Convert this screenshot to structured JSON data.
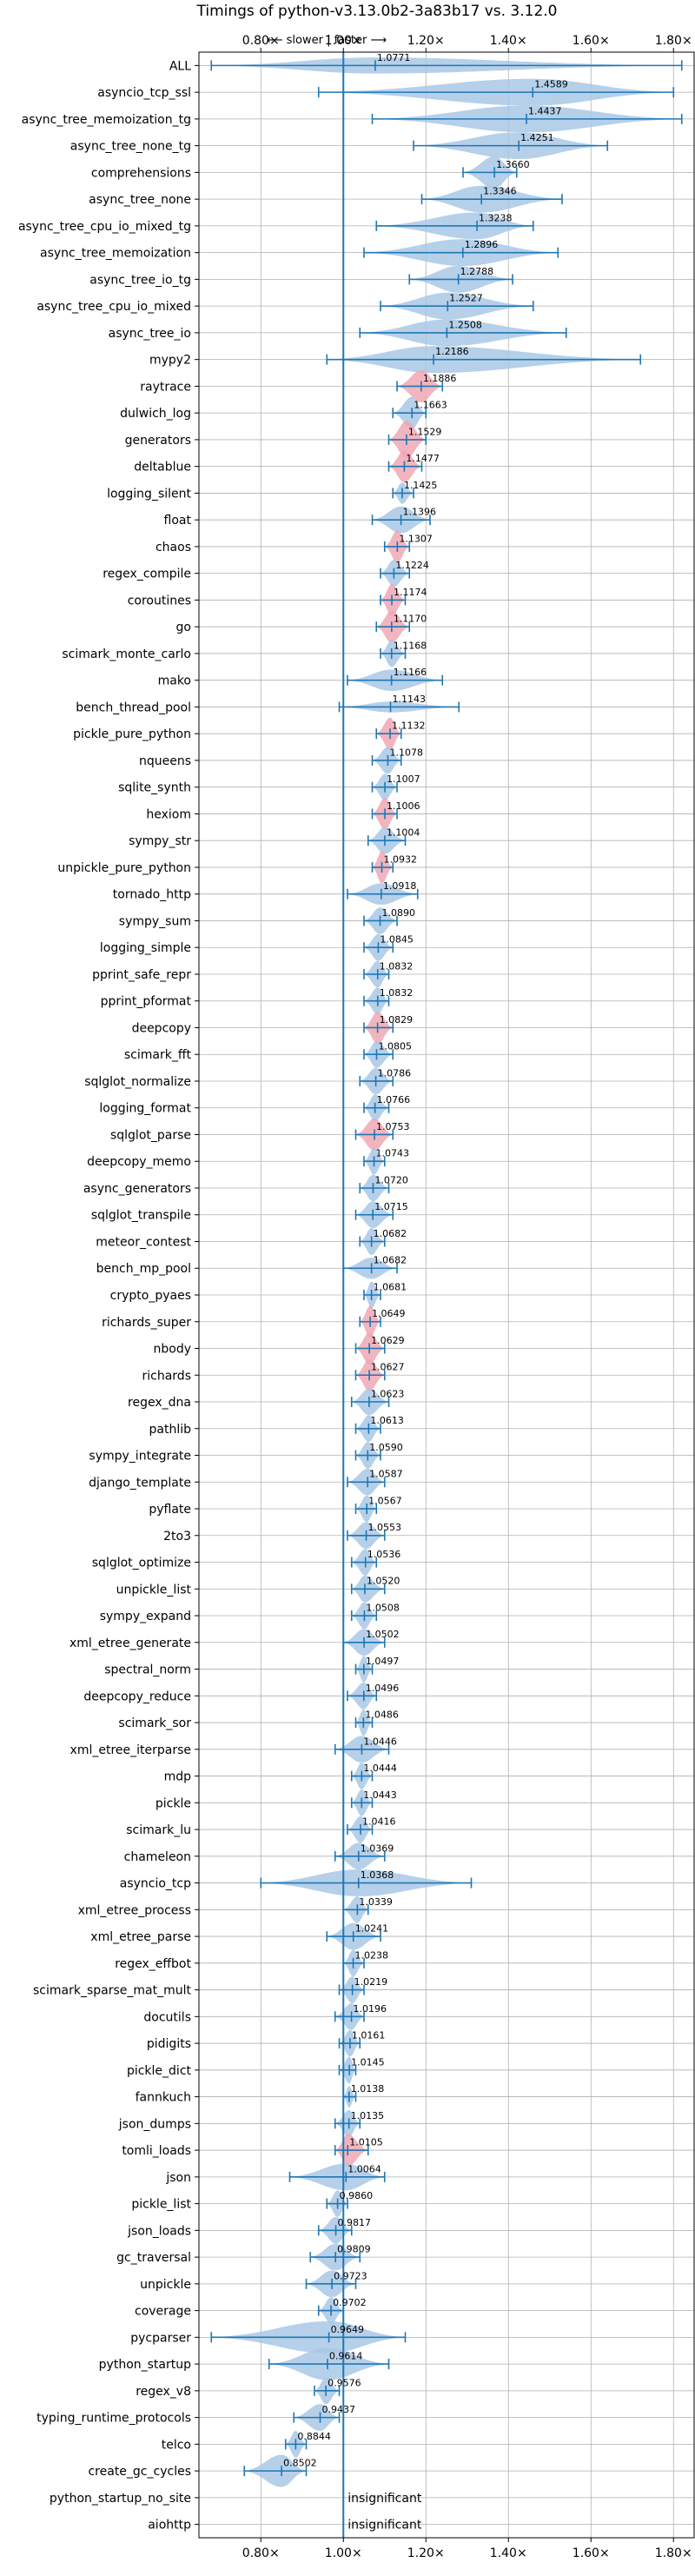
{
  "chart_data": {
    "type": "violin",
    "title": "Timings of python-v3.13.0b2-3a83b17 vs. 3.12.0",
    "direction_note": "⟵ slower | faster ⟶",
    "xlim": [
      0.65,
      1.85
    ],
    "xticks": [
      0.8,
      1.0,
      1.2,
      1.4,
      1.6,
      1.8
    ],
    "xtick_labels": [
      "0.80×",
      "1.00×",
      "1.20×",
      "1.40×",
      "1.60×",
      "1.80×"
    ],
    "reference_line": 1.0,
    "grid": true,
    "colors": {
      "violin": "#a9c8e6",
      "highlight": "#f0a8b4",
      "line": "#1f77b4",
      "grid": "#b0b0b0"
    },
    "benchmarks": [
      {
        "name": "ALL",
        "value": 1.0771,
        "label": "1.0771",
        "min": 0.68,
        "max": 1.82,
        "hw": 0.3,
        "ext": true,
        "hl": false
      },
      {
        "name": "asyncio_tcp_ssl",
        "value": 1.4589,
        "label": "1.4589",
        "min": 0.94,
        "max": 1.8,
        "hw": 0.5,
        "ext": true,
        "hl": false
      },
      {
        "name": "async_tree_memoization_tg",
        "value": 1.4437,
        "label": "1.4437",
        "min": 1.07,
        "max": 1.82,
        "hw": 0.5,
        "ext": true,
        "hl": false
      },
      {
        "name": "async_tree_none_tg",
        "value": 1.4251,
        "label": "1.4251",
        "min": 1.17,
        "max": 1.64,
        "hw": 0.5,
        "ext": true,
        "hl": false
      },
      {
        "name": "comprehensions",
        "value": 1.366,
        "label": "1.3660",
        "min": 1.29,
        "max": 1.42,
        "hw": 0.6,
        "ext": true,
        "hl": false
      },
      {
        "name": "async_tree_none",
        "value": 1.3346,
        "label": "1.3346",
        "min": 1.19,
        "max": 1.53,
        "hw": 0.5,
        "ext": true,
        "hl": false
      },
      {
        "name": "async_tree_cpu_io_mixed_tg",
        "value": 1.3238,
        "label": "1.3238",
        "min": 1.08,
        "max": 1.46,
        "hw": 0.5,
        "ext": true,
        "hl": false
      },
      {
        "name": "async_tree_memoization",
        "value": 1.2896,
        "label": "1.2896",
        "min": 1.05,
        "max": 1.52,
        "hw": 0.5,
        "ext": true,
        "hl": false
      },
      {
        "name": "async_tree_io_tg",
        "value": 1.2788,
        "label": "1.2788",
        "min": 1.16,
        "max": 1.41,
        "hw": 0.5,
        "ext": true,
        "hl": false
      },
      {
        "name": "async_tree_cpu_io_mixed",
        "value": 1.2527,
        "label": "1.2527",
        "min": 1.09,
        "max": 1.46,
        "hw": 0.5,
        "ext": true,
        "hl": false
      },
      {
        "name": "async_tree_io",
        "value": 1.2508,
        "label": "1.2508",
        "min": 1.04,
        "max": 1.54,
        "hw": 0.5,
        "ext": true,
        "hl": false
      },
      {
        "name": "mypy2",
        "value": 1.2186,
        "label": "1.2186",
        "min": 0.96,
        "max": 1.72,
        "hw": 0.5,
        "ext": true,
        "hl": false
      },
      {
        "name": "raytrace",
        "value": 1.1886,
        "label": "1.1886",
        "min": 1.13,
        "max": 1.24,
        "hw": 0.6,
        "ext": true,
        "hl": true
      },
      {
        "name": "dulwich_log",
        "value": 1.1663,
        "label": "1.1663",
        "min": 1.12,
        "max": 1.2,
        "hw": 0.6,
        "ext": true,
        "hl": false
      },
      {
        "name": "generators",
        "value": 1.1529,
        "label": "1.1529",
        "min": 1.11,
        "max": 1.2,
        "hw": 0.7,
        "ext": true,
        "hl": true
      },
      {
        "name": "deltablue",
        "value": 1.1477,
        "label": "1.1477",
        "min": 1.11,
        "max": 1.19,
        "hw": 0.6,
        "ext": true,
        "hl": true
      },
      {
        "name": "logging_silent",
        "value": 1.1425,
        "label": "1.1425",
        "min": 1.12,
        "max": 1.17,
        "hw": 0.4,
        "ext": true,
        "hl": false
      },
      {
        "name": "float",
        "value": 1.1396,
        "label": "1.1396",
        "min": 1.07,
        "max": 1.21,
        "hw": 0.5,
        "ext": true,
        "hl": false
      },
      {
        "name": "chaos",
        "value": 1.1307,
        "label": "1.1307",
        "min": 1.1,
        "max": 1.16,
        "hw": 0.6,
        "ext": true,
        "hl": true
      },
      {
        "name": "regex_compile",
        "value": 1.1224,
        "label": "1.1224",
        "min": 1.09,
        "max": 1.16,
        "hw": 0.5,
        "ext": true,
        "hl": false
      },
      {
        "name": "coroutines",
        "value": 1.1174,
        "label": "1.1174",
        "min": 1.09,
        "max": 1.15,
        "hw": 0.6,
        "ext": true,
        "hl": true
      },
      {
        "name": "go",
        "value": 1.117,
        "label": "1.1170",
        "min": 1.08,
        "max": 1.16,
        "hw": 0.6,
        "ext": true,
        "hl": true
      },
      {
        "name": "scimark_monte_carlo",
        "value": 1.1168,
        "label": "1.1168",
        "min": 1.09,
        "max": 1.15,
        "hw": 0.5,
        "ext": true,
        "hl": false
      },
      {
        "name": "mako",
        "value": 1.1166,
        "label": "1.1166",
        "min": 1.01,
        "max": 1.24,
        "hw": 0.4,
        "ext": true,
        "hl": false
      },
      {
        "name": "bench_thread_pool",
        "value": 1.1143,
        "label": "1.1143",
        "min": 0.99,
        "max": 1.28,
        "hw": 0.2,
        "ext": true,
        "hl": false
      },
      {
        "name": "pickle_pure_python",
        "value": 1.1132,
        "label": "1.1132",
        "min": 1.08,
        "max": 1.14,
        "hw": 0.6,
        "ext": true,
        "hl": true
      },
      {
        "name": "nqueens",
        "value": 1.1078,
        "label": "1.1078",
        "min": 1.07,
        "max": 1.14,
        "hw": 0.5,
        "ext": true,
        "hl": false
      },
      {
        "name": "sqlite_synth",
        "value": 1.1007,
        "label": "1.1007",
        "min": 1.07,
        "max": 1.13,
        "hw": 0.5,
        "ext": true,
        "hl": false
      },
      {
        "name": "hexiom",
        "value": 1.1006,
        "label": "1.1006",
        "min": 1.07,
        "max": 1.13,
        "hw": 0.6,
        "ext": true,
        "hl": true
      },
      {
        "name": "sympy_str",
        "value": 1.1004,
        "label": "1.1004",
        "min": 1.06,
        "max": 1.15,
        "hw": 0.5,
        "ext": true,
        "hl": false
      },
      {
        "name": "unpickle_pure_python",
        "value": 1.0932,
        "label": "1.0932",
        "min": 1.07,
        "max": 1.12,
        "hw": 0.6,
        "ext": true,
        "hl": true
      },
      {
        "name": "tornado_http",
        "value": 1.0918,
        "label": "1.0918",
        "min": 1.01,
        "max": 1.18,
        "hw": 0.4,
        "ext": true,
        "hl": false
      },
      {
        "name": "sympy_sum",
        "value": 1.089,
        "label": "1.0890",
        "min": 1.05,
        "max": 1.13,
        "hw": 0.5,
        "ext": true,
        "hl": false
      },
      {
        "name": "logging_simple",
        "value": 1.0845,
        "label": "1.0845",
        "min": 1.05,
        "max": 1.12,
        "hw": 0.5,
        "ext": true,
        "hl": false
      },
      {
        "name": "pprint_safe_repr",
        "value": 1.0832,
        "label": "1.0832",
        "min": 1.05,
        "max": 1.11,
        "hw": 0.5,
        "ext": true,
        "hl": false
      },
      {
        "name": "pprint_pformat",
        "value": 1.0832,
        "label": "1.0832",
        "min": 1.05,
        "max": 1.11,
        "hw": 0.5,
        "ext": true,
        "hl": false
      },
      {
        "name": "deepcopy",
        "value": 1.0829,
        "label": "1.0829",
        "min": 1.05,
        "max": 1.12,
        "hw": 0.6,
        "ext": true,
        "hl": true
      },
      {
        "name": "scimark_fft",
        "value": 1.0805,
        "label": "1.0805",
        "min": 1.05,
        "max": 1.12,
        "hw": 0.5,
        "ext": true,
        "hl": false
      },
      {
        "name": "sqlglot_normalize",
        "value": 1.0786,
        "label": "1.0786",
        "min": 1.04,
        "max": 1.12,
        "hw": 0.5,
        "ext": true,
        "hl": false
      },
      {
        "name": "logging_format",
        "value": 1.0766,
        "label": "1.0766",
        "min": 1.05,
        "max": 1.11,
        "hw": 0.5,
        "ext": true,
        "hl": false
      },
      {
        "name": "sqlglot_parse",
        "value": 1.0753,
        "label": "1.0753",
        "min": 1.03,
        "max": 1.12,
        "hw": 0.6,
        "ext": true,
        "hl": true
      },
      {
        "name": "deepcopy_memo",
        "value": 1.0743,
        "label": "1.0743",
        "min": 1.05,
        "max": 1.1,
        "hw": 0.5,
        "ext": true,
        "hl": false
      },
      {
        "name": "async_generators",
        "value": 1.072,
        "label": "1.0720",
        "min": 1.04,
        "max": 1.11,
        "hw": 0.5,
        "ext": true,
        "hl": false
      },
      {
        "name": "sqlglot_transpile",
        "value": 1.0715,
        "label": "1.0715",
        "min": 1.03,
        "max": 1.12,
        "hw": 0.5,
        "ext": true,
        "hl": false
      },
      {
        "name": "meteor_contest",
        "value": 1.0682,
        "label": "1.0682",
        "min": 1.04,
        "max": 1.1,
        "hw": 0.5,
        "ext": true,
        "hl": false
      },
      {
        "name": "bench_mp_pool",
        "value": 1.0682,
        "label": "1.0682",
        "min": 1.0,
        "max": 1.13,
        "hw": 0.4,
        "ext": true,
        "hl": false
      },
      {
        "name": "crypto_pyaes",
        "value": 1.0681,
        "label": "1.0681",
        "min": 1.05,
        "max": 1.09,
        "hw": 0.5,
        "ext": true,
        "hl": false
      },
      {
        "name": "richards_super",
        "value": 1.0649,
        "label": "1.0649",
        "min": 1.04,
        "max": 1.09,
        "hw": 0.6,
        "ext": true,
        "hl": true
      },
      {
        "name": "nbody",
        "value": 1.0629,
        "label": "1.0629",
        "min": 1.03,
        "max": 1.1,
        "hw": 0.6,
        "ext": true,
        "hl": true
      },
      {
        "name": "richards",
        "value": 1.0627,
        "label": "1.0627",
        "min": 1.03,
        "max": 1.1,
        "hw": 0.6,
        "ext": true,
        "hl": true
      },
      {
        "name": "regex_dna",
        "value": 1.0623,
        "label": "1.0623",
        "min": 1.02,
        "max": 1.11,
        "hw": 0.5,
        "ext": true,
        "hl": false
      },
      {
        "name": "pathlib",
        "value": 1.0613,
        "label": "1.0613",
        "min": 1.03,
        "max": 1.09,
        "hw": 0.5,
        "ext": true,
        "hl": false
      },
      {
        "name": "sympy_integrate",
        "value": 1.059,
        "label": "1.0590",
        "min": 1.03,
        "max": 1.09,
        "hw": 0.5,
        "ext": true,
        "hl": false
      },
      {
        "name": "django_template",
        "value": 1.0587,
        "label": "1.0587",
        "min": 1.01,
        "max": 1.1,
        "hw": 0.5,
        "ext": true,
        "hl": false
      },
      {
        "name": "pyflate",
        "value": 1.0567,
        "label": "1.0567",
        "min": 1.03,
        "max": 1.08,
        "hw": 0.5,
        "ext": true,
        "hl": false
      },
      {
        "name": "2to3",
        "value": 1.0553,
        "label": "1.0553",
        "min": 1.01,
        "max": 1.1,
        "hw": 0.5,
        "ext": true,
        "hl": false
      },
      {
        "name": "sqlglot_optimize",
        "value": 1.0536,
        "label": "1.0536",
        "min": 1.02,
        "max": 1.08,
        "hw": 0.5,
        "ext": true,
        "hl": false
      },
      {
        "name": "unpickle_list",
        "value": 1.052,
        "label": "1.0520",
        "min": 1.02,
        "max": 1.1,
        "hw": 0.5,
        "ext": true,
        "hl": false
      },
      {
        "name": "sympy_expand",
        "value": 1.0508,
        "label": "1.0508",
        "min": 1.02,
        "max": 1.08,
        "hw": 0.5,
        "ext": true,
        "hl": false
      },
      {
        "name": "xml_etree_generate",
        "value": 1.0502,
        "label": "1.0502",
        "min": 1.0,
        "max": 1.1,
        "hw": 0.5,
        "ext": true,
        "hl": false
      },
      {
        "name": "spectral_norm",
        "value": 1.0497,
        "label": "1.0497",
        "min": 1.03,
        "max": 1.07,
        "hw": 0.5,
        "ext": true,
        "hl": false
      },
      {
        "name": "deepcopy_reduce",
        "value": 1.0496,
        "label": "1.0496",
        "min": 1.01,
        "max": 1.08,
        "hw": 0.5,
        "ext": true,
        "hl": false
      },
      {
        "name": "scimark_sor",
        "value": 1.0486,
        "label": "1.0486",
        "min": 1.03,
        "max": 1.07,
        "hw": 0.5,
        "ext": true,
        "hl": false
      },
      {
        "name": "xml_etree_iterparse",
        "value": 1.0446,
        "label": "1.0446",
        "min": 0.98,
        "max": 1.11,
        "hw": 0.5,
        "ext": true,
        "hl": false
      },
      {
        "name": "mdp",
        "value": 1.0444,
        "label": "1.0444",
        "min": 1.02,
        "max": 1.07,
        "hw": 0.5,
        "ext": true,
        "hl": false
      },
      {
        "name": "pickle",
        "value": 1.0443,
        "label": "1.0443",
        "min": 1.02,
        "max": 1.07,
        "hw": 0.5,
        "ext": true,
        "hl": false
      },
      {
        "name": "scimark_lu",
        "value": 1.0416,
        "label": "1.0416",
        "min": 1.01,
        "max": 1.07,
        "hw": 0.5,
        "ext": true,
        "hl": false
      },
      {
        "name": "chameleon",
        "value": 1.0369,
        "label": "1.0369",
        "min": 0.98,
        "max": 1.1,
        "hw": 0.5,
        "ext": true,
        "hl": false
      },
      {
        "name": "asyncio_tcp",
        "value": 1.0368,
        "label": "1.0368",
        "min": 0.8,
        "max": 1.31,
        "hw": 0.5,
        "ext": true,
        "hl": false
      },
      {
        "name": "xml_etree_process",
        "value": 1.0339,
        "label": "1.0339",
        "min": 1.0,
        "max": 1.06,
        "hw": 0.5,
        "ext": true,
        "hl": false
      },
      {
        "name": "xml_etree_parse",
        "value": 1.0241,
        "label": "1.0241",
        "min": 0.96,
        "max": 1.09,
        "hw": 0.5,
        "ext": true,
        "hl": false
      },
      {
        "name": "regex_effbot",
        "value": 1.0238,
        "label": "1.0238",
        "min": 1.0,
        "max": 1.05,
        "hw": 0.5,
        "ext": true,
        "hl": false
      },
      {
        "name": "scimark_sparse_mat_mult",
        "value": 1.0219,
        "label": "1.0219",
        "min": 0.99,
        "max": 1.05,
        "hw": 0.5,
        "ext": true,
        "hl": false
      },
      {
        "name": "docutils",
        "value": 1.0196,
        "label": "1.0196",
        "min": 0.98,
        "max": 1.05,
        "hw": 0.5,
        "ext": true,
        "hl": false
      },
      {
        "name": "pidigits",
        "value": 1.0161,
        "label": "1.0161",
        "min": 0.99,
        "max": 1.04,
        "hw": 0.5,
        "ext": true,
        "hl": false
      },
      {
        "name": "pickle_dict",
        "value": 1.0145,
        "label": "1.0145",
        "min": 0.99,
        "max": 1.03,
        "hw": 0.5,
        "ext": true,
        "hl": false
      },
      {
        "name": "fannkuch",
        "value": 1.0138,
        "label": "1.0138",
        "min": 1.0,
        "max": 1.03,
        "hw": 0.4,
        "ext": true,
        "hl": false
      },
      {
        "name": "json_dumps",
        "value": 1.0135,
        "label": "1.0135",
        "min": 0.98,
        "max": 1.04,
        "hw": 0.5,
        "ext": true,
        "hl": false
      },
      {
        "name": "tomli_loads",
        "value": 1.0105,
        "label": "1.0105",
        "min": 0.98,
        "max": 1.06,
        "hw": 0.6,
        "ext": true,
        "hl": true
      },
      {
        "name": "json",
        "value": 1.0064,
        "label": "1.0064",
        "min": 0.87,
        "max": 1.1,
        "hw": 0.5,
        "ext": true,
        "hl": false
      },
      {
        "name": "pickle_list",
        "value": 0.986,
        "label": "0.9860",
        "min": 0.96,
        "max": 1.01,
        "hw": 0.5,
        "ext": true,
        "hl": false
      },
      {
        "name": "json_loads",
        "value": 0.9817,
        "label": "0.9817",
        "min": 0.94,
        "max": 1.02,
        "hw": 0.5,
        "ext": true,
        "hl": false
      },
      {
        "name": "gc_traversal",
        "value": 0.9809,
        "label": "0.9809",
        "min": 0.92,
        "max": 1.04,
        "hw": 0.5,
        "ext": true,
        "hl": false
      },
      {
        "name": "unpickle",
        "value": 0.9723,
        "label": "0.9723",
        "min": 0.91,
        "max": 1.03,
        "hw": 0.5,
        "ext": true,
        "hl": false
      },
      {
        "name": "coverage",
        "value": 0.9702,
        "label": "0.9702",
        "min": 0.94,
        "max": 1.0,
        "hw": 0.5,
        "ext": true,
        "hl": false
      },
      {
        "name": "pycparser",
        "value": 0.9649,
        "label": "0.9649",
        "min": 0.68,
        "max": 1.15,
        "hw": 0.6,
        "ext": true,
        "hl": false
      },
      {
        "name": "python_startup",
        "value": 0.9614,
        "label": "0.9614",
        "min": 0.82,
        "max": 1.11,
        "hw": 0.6,
        "ext": true,
        "hl": false
      },
      {
        "name": "regex_v8",
        "value": 0.9576,
        "label": "0.9576",
        "min": 0.93,
        "max": 0.99,
        "hw": 0.5,
        "ext": true,
        "hl": false
      },
      {
        "name": "typing_runtime_protocols",
        "value": 0.9437,
        "label": "0.9437",
        "min": 0.88,
        "max": 0.99,
        "hw": 0.5,
        "ext": true,
        "hl": false
      },
      {
        "name": "telco",
        "value": 0.8844,
        "label": "0.8844",
        "min": 0.86,
        "max": 0.91,
        "hw": 0.5,
        "ext": true,
        "hl": false
      },
      {
        "name": "create_gc_cycles",
        "value": 0.8502,
        "label": "0.8502",
        "min": 0.76,
        "max": 0.91,
        "hw": 0.6,
        "ext": true,
        "hl": false
      },
      {
        "name": "python_startup_no_site",
        "value": null,
        "label": "insignificant",
        "min": null,
        "max": null,
        "hw": 0,
        "ext": false,
        "hl": false
      },
      {
        "name": "aiohttp",
        "value": null,
        "label": "insignificant",
        "min": null,
        "max": null,
        "hw": 0,
        "ext": false,
        "hl": false
      }
    ]
  }
}
